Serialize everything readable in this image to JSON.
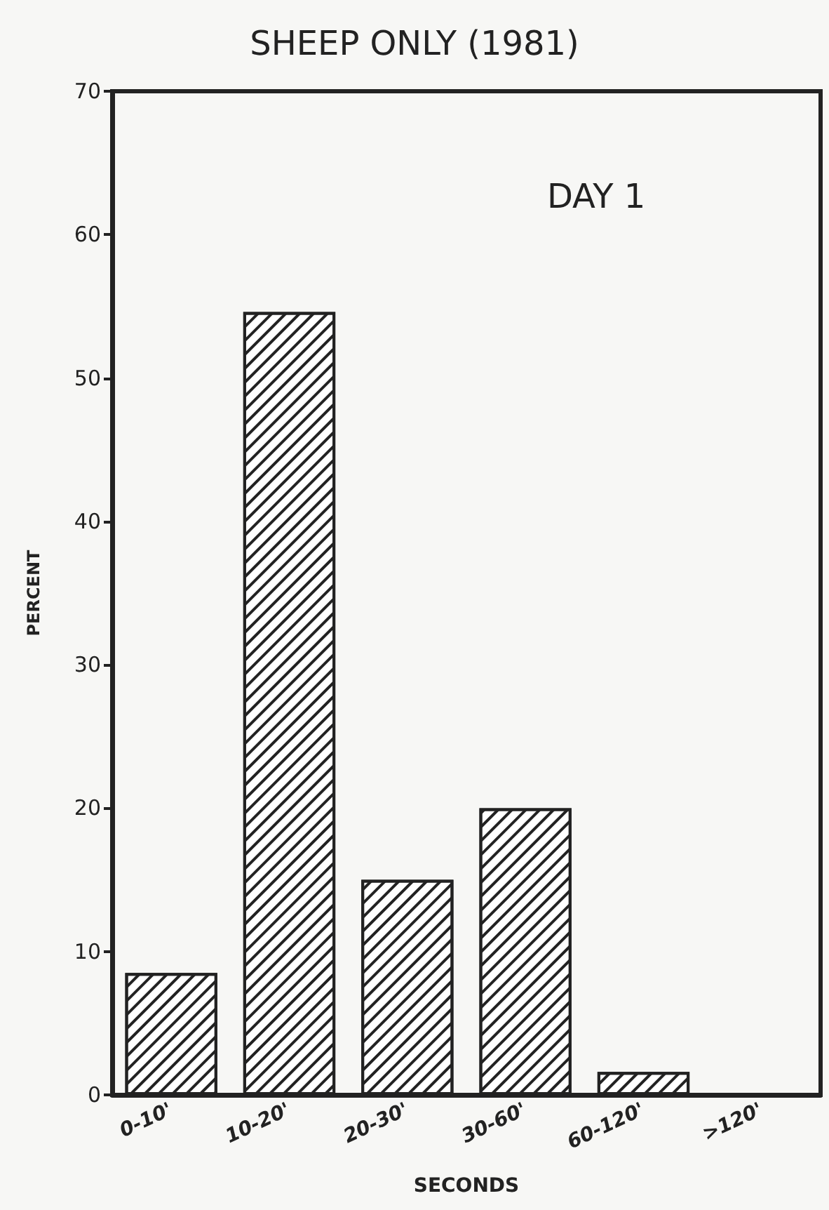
{
  "chart_data": {
    "type": "bar",
    "title": "SHEEP ONLY (1981)",
    "xlabel": "SECONDS",
    "ylabel": "PERCENT",
    "annotations": [
      "DAY 1"
    ],
    "categories": [
      "0-10'",
      "10-20'",
      "20-30'",
      "30-60'",
      "60-120'",
      ">120'"
    ],
    "values": [
      8.5,
      54.6,
      15,
      20,
      1.6,
      0
    ],
    "color": "#222222",
    "ylim": [
      0,
      70
    ],
    "yticks": [
      0,
      10,
      20,
      30,
      40,
      50,
      60,
      70
    ],
    "grid": false
  }
}
